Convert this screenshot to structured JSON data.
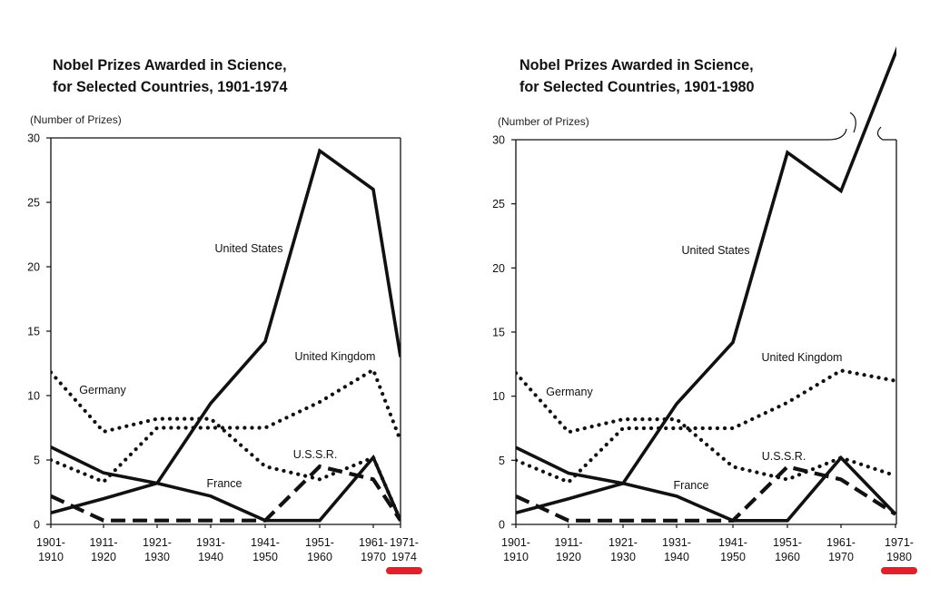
{
  "chart_data": [
    {
      "type": "line",
      "title": "Nobel Prizes Awarded in Science,",
      "subtitle": "for Selected Countries, 1901-1974",
      "ylabel": "(Number of Prizes)",
      "ylim": [
        0,
        30
      ],
      "yticks": [
        "0",
        "5",
        "10",
        "15",
        "20",
        "25",
        "30"
      ],
      "categories": [
        [
          "1901-",
          "1910"
        ],
        [
          "1911-",
          "1920"
        ],
        [
          "1921-",
          "1930"
        ],
        [
          "1931-",
          "1940"
        ],
        [
          "1941-",
          "1950"
        ],
        [
          "1951-",
          "1960"
        ],
        [
          "1961-",
          "1970"
        ],
        [
          "1971-",
          "1974"
        ]
      ],
      "highlight_category": 7,
      "highlight_color": "#e0202a",
      "series": [
        {
          "name": "United States",
          "style": "solid",
          "values": [
            0.9,
            2.0,
            3.2,
            9.4,
            14.2,
            29.0,
            26.0,
            13.0
          ]
        },
        {
          "name": "United Kingdom",
          "style": "dotted",
          "values": [
            5.0,
            3.3,
            7.5,
            7.5,
            7.5,
            9.5,
            12.0,
            6.5
          ]
        },
        {
          "name": "Germany",
          "style": "dotted",
          "values": [
            11.8,
            7.2,
            8.2,
            8.2,
            4.5,
            3.5,
            5.2,
            0.3
          ]
        },
        {
          "name": "U.S.S.R.",
          "style": "dashed",
          "values": [
            2.2,
            0.3,
            0.3,
            0.3,
            0.3,
            4.5,
            3.5,
            0.3
          ]
        },
        {
          "name": "France",
          "style": "solid",
          "values": [
            6.0,
            4.0,
            3.2,
            2.2,
            0.3,
            0.3,
            5.2,
            0.3
          ]
        }
      ],
      "labels": [
        "United States",
        "United Kingdom",
        "Germany",
        "U.S.S.R.",
        "France"
      ],
      "grid": false
    },
    {
      "type": "line",
      "title": "Nobel Prizes Awarded in Science,",
      "subtitle": "for Selected Countries, 1901-1980",
      "ylabel": "(Number of Prizes)",
      "ylim": [
        0,
        30
      ],
      "yticks": [
        "0",
        "5",
        "10",
        "15",
        "20",
        "25",
        "30"
      ],
      "categories": [
        [
          "1901-",
          "1910"
        ],
        [
          "1911-",
          "1920"
        ],
        [
          "1921-",
          "1930"
        ],
        [
          "1931-",
          "1940"
        ],
        [
          "1941-",
          "1950"
        ],
        [
          "1951-",
          "1960"
        ],
        [
          "1961-",
          "1970"
        ],
        [
          "1971-",
          "1980"
        ]
      ],
      "highlight_category": 7,
      "highlight_color": "#e0202a",
      "axis_break": true,
      "series": [
        {
          "name": "United States",
          "style": "solid",
          "values": [
            0.9,
            2.0,
            3.2,
            9.4,
            14.2,
            29.0,
            26.0,
            40.0
          ]
        },
        {
          "name": "United Kingdom",
          "style": "dotted",
          "values": [
            5.0,
            3.3,
            7.5,
            7.5,
            7.5,
            9.5,
            12.0,
            11.2
          ]
        },
        {
          "name": "Germany",
          "style": "dotted",
          "values": [
            11.8,
            7.2,
            8.2,
            8.2,
            4.5,
            3.5,
            5.2,
            3.8
          ]
        },
        {
          "name": "U.S.S.R.",
          "style": "dashed",
          "values": [
            2.2,
            0.3,
            0.3,
            0.3,
            0.3,
            4.5,
            3.5,
            0.8
          ]
        },
        {
          "name": "France",
          "style": "solid",
          "values": [
            6.0,
            4.0,
            3.2,
            2.2,
            0.3,
            0.3,
            5.2,
            0.8
          ]
        }
      ],
      "labels": [
        "United States",
        "United Kingdom",
        "Germany",
        "U.S.S.R.",
        "France"
      ],
      "grid": false
    }
  ]
}
